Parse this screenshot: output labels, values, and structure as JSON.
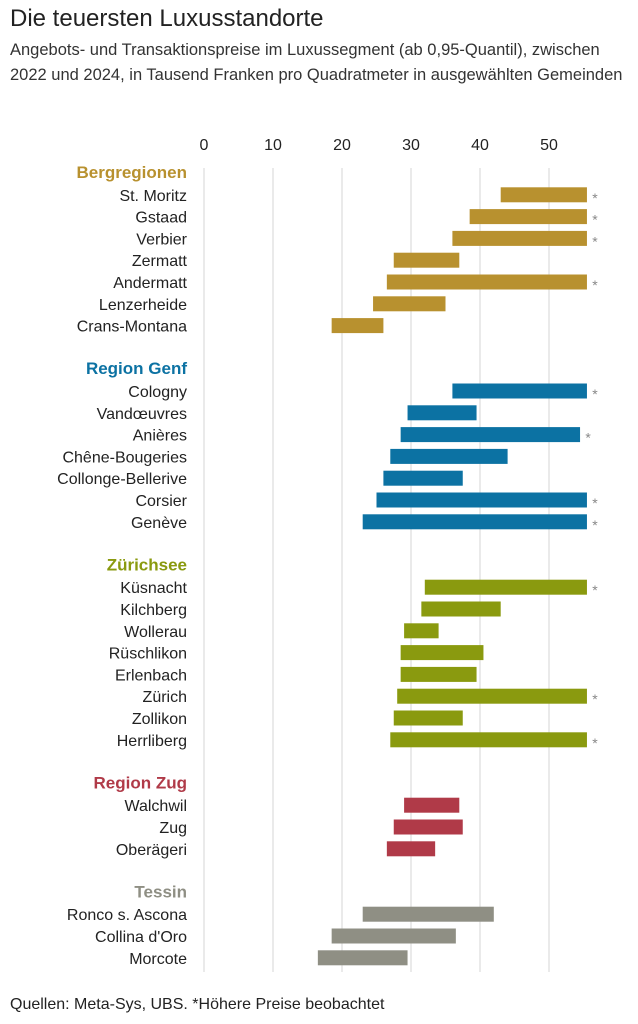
{
  "title": "Die teuersten Luxusstandorte",
  "subtitle": "Angebots- und Transaktionspreise im Luxussegment (ab 0,95-Quantil), zwischen 2022 und 2024, in Tausend Franken pro Quadratmeter in ausgewählten Gemeinden",
  "footer": "Quellen: Meta-Sys, UBS. *Höhere Preise beobachtet",
  "chart_data": {
    "type": "bar",
    "orientation": "horizontal-range",
    "x_ticks": [
      "0",
      "10",
      "20",
      "30",
      "40",
      "50"
    ],
    "xlim": [
      0,
      55
    ],
    "grid": true,
    "star_symbol": "*",
    "groups": [
      {
        "name": "Bergregionen",
        "color": "#B8912F",
        "items": [
          {
            "label": "St. Moritz",
            "low": 43.0,
            "high": 55.5,
            "star": true
          },
          {
            "label": "Gstaad",
            "low": 38.5,
            "high": 55.5,
            "star": true
          },
          {
            "label": "Verbier",
            "low": 36.0,
            "high": 55.5,
            "star": true
          },
          {
            "label": "Zermatt",
            "low": 27.5,
            "high": 37.0,
            "star": false
          },
          {
            "label": "Andermatt",
            "low": 26.5,
            "high": 55.5,
            "star": true
          },
          {
            "label": "Lenzerheide",
            "low": 24.5,
            "high": 35.0,
            "star": false
          },
          {
            "label": "Crans-Montana",
            "low": 18.5,
            "high": 26.0,
            "star": false
          }
        ]
      },
      {
        "name": "Region Genf",
        "color": "#0C72A3",
        "items": [
          {
            "label": "Cologny",
            "low": 36.0,
            "high": 55.5,
            "star": true
          },
          {
            "label": "Vandœuvres",
            "low": 29.5,
            "high": 39.5,
            "star": false
          },
          {
            "label": "Anières",
            "low": 28.5,
            "high": 54.5,
            "star": true
          },
          {
            "label": "Chêne-Bougeries",
            "low": 27.0,
            "high": 44.0,
            "star": false
          },
          {
            "label": "Collonge-Bellerive",
            "low": 26.0,
            "high": 37.5,
            "star": false
          },
          {
            "label": "Corsier",
            "low": 25.0,
            "high": 55.5,
            "star": true
          },
          {
            "label": "Genève",
            "low": 23.0,
            "high": 55.5,
            "star": true
          }
        ]
      },
      {
        "name": "Zürichsee",
        "color": "#8A9A0F",
        "items": [
          {
            "label": "Küsnacht",
            "low": 32.0,
            "high": 55.5,
            "star": true
          },
          {
            "label": "Kilchberg",
            "low": 31.5,
            "high": 43.0,
            "star": false
          },
          {
            "label": "Wollerau",
            "low": 29.0,
            "high": 34.0,
            "star": false
          },
          {
            "label": "Rüschlikon",
            "low": 28.5,
            "high": 40.5,
            "star": false
          },
          {
            "label": "Erlenbach",
            "low": 28.5,
            "high": 39.5,
            "star": false
          },
          {
            "label": "Zürich",
            "low": 28.0,
            "high": 55.5,
            "star": true
          },
          {
            "label": "Zollikon",
            "low": 27.5,
            "high": 37.5,
            "star": false
          },
          {
            "label": "Herrliberg",
            "low": 27.0,
            "high": 55.5,
            "star": true
          }
        ]
      },
      {
        "name": "Region Zug",
        "color": "#B03A48",
        "items": [
          {
            "label": "Walchwil",
            "low": 29.0,
            "high": 37.0,
            "star": false
          },
          {
            "label": "Zug",
            "low": 27.5,
            "high": 37.5,
            "star": false
          },
          {
            "label": "Oberägeri",
            "low": 26.5,
            "high": 33.5,
            "star": false
          }
        ]
      },
      {
        "name": "Tessin",
        "color": "#8F8F84",
        "items": [
          {
            "label": "Ronco s. Ascona",
            "low": 23.0,
            "high": 42.0,
            "star": false
          },
          {
            "label": "Collina d'Oro",
            "low": 18.5,
            "high": 36.5,
            "star": false
          },
          {
            "label": "Morcote",
            "low": 16.5,
            "high": 29.5,
            "star": false
          }
        ]
      }
    ]
  }
}
